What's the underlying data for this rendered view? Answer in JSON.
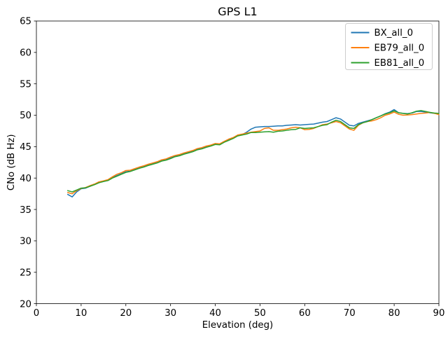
{
  "figure": {
    "background": "#ffffff",
    "spine_color": "#000000"
  },
  "chart_data": {
    "type": "line",
    "title": "GPS L1",
    "xlabel": "Elevation (deg)",
    "ylabel": "CNo (dB Hz)",
    "xlim": [
      0,
      90
    ],
    "ylim": [
      20,
      65
    ],
    "xticks": [
      0,
      10,
      20,
      30,
      40,
      50,
      60,
      70,
      80,
      90
    ],
    "yticks": [
      20,
      25,
      30,
      35,
      40,
      45,
      50,
      55,
      60,
      65
    ],
    "grid": false,
    "legend_position": "upper right",
    "legend": {
      "border_color": "#cccccc",
      "background": "#ffffff"
    },
    "x": [
      7,
      8,
      9,
      10,
      11,
      12,
      13,
      14,
      15,
      16,
      17,
      18,
      19,
      20,
      21,
      22,
      23,
      24,
      25,
      26,
      27,
      28,
      29,
      30,
      31,
      32,
      33,
      34,
      35,
      36,
      37,
      38,
      39,
      40,
      41,
      42,
      43,
      44,
      45,
      46,
      47,
      48,
      49,
      50,
      51,
      52,
      53,
      54,
      55,
      56,
      57,
      58,
      59,
      60,
      61,
      62,
      63,
      64,
      65,
      66,
      67,
      68,
      69,
      70,
      71,
      72,
      73,
      74,
      75,
      76,
      77,
      78,
      79,
      80,
      81,
      82,
      83,
      84,
      85,
      86,
      87,
      88,
      89,
      90
    ],
    "series": [
      {
        "name": "BX_all_0",
        "color": "#1f77b4",
        "values": [
          37.4,
          37.0,
          37.8,
          38.3,
          38.4,
          38.7,
          39.0,
          39.3,
          39.45,
          39.65,
          40.1,
          40.4,
          40.7,
          41.0,
          41.1,
          41.4,
          41.6,
          41.8,
          42.1,
          42.3,
          42.45,
          42.8,
          42.9,
          43.2,
          43.5,
          43.6,
          43.9,
          44.1,
          44.3,
          44.6,
          44.7,
          45.0,
          45.2,
          45.4,
          45.4,
          45.8,
          46.1,
          46.4,
          46.8,
          46.9,
          47.3,
          47.8,
          48.1,
          48.15,
          48.2,
          48.2,
          48.25,
          48.3,
          48.3,
          48.4,
          48.45,
          48.5,
          48.45,
          48.5,
          48.55,
          48.6,
          48.75,
          48.9,
          49.0,
          49.3,
          49.6,
          49.4,
          48.9,
          48.4,
          48.3,
          48.7,
          48.9,
          49.1,
          49.3,
          49.6,
          49.9,
          50.25,
          50.5,
          50.9,
          50.4,
          50.3,
          50.25,
          50.35,
          50.6,
          50.6,
          50.5,
          50.4,
          50.3,
          50.2
        ]
      },
      {
        "name": "EB79_all_0",
        "color": "#ff7f0e",
        "values": [
          37.7,
          37.5,
          38.0,
          38.35,
          38.5,
          38.8,
          39.05,
          39.4,
          39.55,
          39.75,
          40.2,
          40.6,
          40.85,
          41.2,
          41.25,
          41.5,
          41.75,
          41.95,
          42.2,
          42.4,
          42.6,
          42.9,
          43.05,
          43.35,
          43.6,
          43.75,
          44.0,
          44.2,
          44.4,
          44.7,
          44.85,
          45.1,
          45.25,
          45.5,
          45.45,
          45.85,
          46.2,
          46.45,
          46.85,
          47.0,
          47.15,
          47.3,
          47.4,
          47.5,
          47.9,
          48.0,
          47.6,
          47.6,
          47.7,
          47.8,
          48.0,
          48.1,
          48.0,
          47.7,
          47.75,
          47.9,
          48.2,
          48.5,
          48.6,
          48.8,
          49.0,
          48.8,
          48.3,
          47.8,
          47.6,
          48.4,
          48.8,
          49.0,
          49.1,
          49.3,
          49.6,
          50.0,
          50.2,
          50.5,
          50.15,
          50.0,
          50.05,
          50.1,
          50.2,
          50.3,
          50.35,
          50.45,
          50.3,
          50.1
        ]
      },
      {
        "name": "EB81_all_0",
        "color": "#2ca02c",
        "values": [
          38.0,
          37.8,
          38.1,
          38.4,
          38.45,
          38.7,
          38.95,
          39.25,
          39.45,
          39.6,
          40.0,
          40.3,
          40.6,
          40.9,
          41.05,
          41.3,
          41.55,
          41.75,
          42.0,
          42.2,
          42.4,
          42.7,
          42.85,
          43.1,
          43.4,
          43.55,
          43.8,
          44.0,
          44.2,
          44.5,
          44.65,
          44.9,
          45.1,
          45.35,
          45.3,
          45.7,
          46.0,
          46.3,
          46.7,
          46.85,
          47.0,
          47.25,
          47.25,
          47.3,
          47.35,
          47.4,
          47.3,
          47.45,
          47.5,
          47.6,
          47.7,
          47.75,
          48.0,
          47.9,
          47.95,
          48.0,
          48.2,
          48.4,
          48.5,
          48.9,
          49.2,
          49.0,
          48.5,
          48.0,
          47.9,
          48.5,
          48.8,
          49.0,
          49.3,
          49.6,
          49.9,
          50.2,
          50.4,
          50.7,
          50.4,
          50.3,
          50.2,
          50.4,
          50.65,
          50.75,
          50.6,
          50.45,
          50.35,
          50.3
        ]
      }
    ]
  }
}
